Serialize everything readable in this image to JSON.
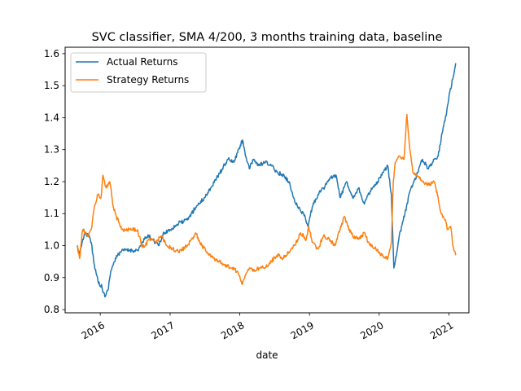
{
  "chart_data": {
    "type": "line",
    "title": "SVC classifier, SMA 4/200, 3 months training data, baseline",
    "xlabel": "date",
    "ylabel": "",
    "xlim": [
      "2015-07-01",
      "2021-04-15"
    ],
    "ylim": [
      0.79,
      1.62
    ],
    "x_ticks": [
      {
        "date": "2016-01-01",
        "label": "2016"
      },
      {
        "date": "2017-01-01",
        "label": "2017"
      },
      {
        "date": "2018-01-01",
        "label": "2018"
      },
      {
        "date": "2019-01-01",
        "label": "2019"
      },
      {
        "date": "2020-01-01",
        "label": "2020"
      },
      {
        "date": "2021-01-01",
        "label": "2021"
      }
    ],
    "y_ticks": [
      0.8,
      0.9,
      1.0,
      1.1,
      1.2,
      1.3,
      1.4,
      1.5,
      1.6
    ],
    "legend_position": "top-left",
    "series": [
      {
        "name": "Actual Returns",
        "color": "#1f77b4",
        "points": [
          [
            "2015-09-01",
            1.0
          ],
          [
            "2015-09-15",
            0.97
          ],
          [
            "2015-10-01",
            1.02
          ],
          [
            "2015-10-15",
            1.04
          ],
          [
            "2015-11-01",
            1.03
          ],
          [
            "2015-11-15",
            1.01
          ],
          [
            "2015-12-01",
            0.94
          ],
          [
            "2015-12-20",
            0.89
          ],
          [
            "2016-01-10",
            0.87
          ],
          [
            "2016-01-25",
            0.84
          ],
          [
            "2016-02-10",
            0.86
          ],
          [
            "2016-02-25",
            0.92
          ],
          [
            "2016-03-15",
            0.95
          ],
          [
            "2016-04-01",
            0.97
          ],
          [
            "2016-04-15",
            0.98
          ],
          [
            "2016-05-01",
            0.985
          ],
          [
            "2016-07-15",
            0.985
          ],
          [
            "2016-08-01",
            1.0
          ],
          [
            "2016-08-20",
            1.02
          ],
          [
            "2016-09-10",
            1.03
          ],
          [
            "2016-10-01",
            1.02
          ],
          [
            "2016-11-01",
            1.0
          ],
          [
            "2016-12-01",
            1.04
          ],
          [
            "2017-01-01",
            1.05
          ],
          [
            "2017-02-15",
            1.07
          ],
          [
            "2017-04-01",
            1.08
          ],
          [
            "2017-05-15",
            1.12
          ],
          [
            "2017-07-01",
            1.15
          ],
          [
            "2017-08-01",
            1.18
          ],
          [
            "2017-09-01",
            1.21
          ],
          [
            "2017-10-01",
            1.24
          ],
          [
            "2017-11-01",
            1.27
          ],
          [
            "2017-12-01",
            1.26
          ],
          [
            "2017-12-20",
            1.29
          ],
          [
            "2018-01-15",
            1.33
          ],
          [
            "2018-02-05",
            1.27
          ],
          [
            "2018-02-20",
            1.24
          ],
          [
            "2018-03-15",
            1.27
          ],
          [
            "2018-04-10",
            1.25
          ],
          [
            "2018-05-15",
            1.26
          ],
          [
            "2018-06-15",
            1.25
          ],
          [
            "2018-07-15",
            1.23
          ],
          [
            "2018-08-15",
            1.22
          ],
          [
            "2018-09-15",
            1.2
          ],
          [
            "2018-10-10",
            1.15
          ],
          [
            "2018-11-01",
            1.12
          ],
          [
            "2018-12-01",
            1.1
          ],
          [
            "2018-12-24",
            1.06
          ],
          [
            "2019-01-15",
            1.12
          ],
          [
            "2019-02-15",
            1.16
          ],
          [
            "2019-03-15",
            1.18
          ],
          [
            "2019-04-20",
            1.21
          ],
          [
            "2019-05-20",
            1.22
          ],
          [
            "2019-06-10",
            1.15
          ],
          [
            "2019-07-15",
            1.2
          ],
          [
            "2019-08-15",
            1.15
          ],
          [
            "2019-09-15",
            1.18
          ],
          [
            "2019-10-15",
            1.13
          ],
          [
            "2019-11-15",
            1.17
          ],
          [
            "2019-12-15",
            1.19
          ],
          [
            "2020-01-15",
            1.22
          ],
          [
            "2020-02-15",
            1.25
          ],
          [
            "2020-03-05",
            1.16
          ],
          [
            "2020-03-18",
            0.93
          ],
          [
            "2020-03-25",
            0.95
          ],
          [
            "2020-04-15",
            1.03
          ],
          [
            "2020-05-15",
            1.1
          ],
          [
            "2020-06-10",
            1.17
          ],
          [
            "2020-07-15",
            1.22
          ],
          [
            "2020-08-15",
            1.27
          ],
          [
            "2020-09-15",
            1.24
          ],
          [
            "2020-10-15",
            1.27
          ],
          [
            "2020-11-05",
            1.28
          ],
          [
            "2020-11-25",
            1.35
          ],
          [
            "2020-12-20",
            1.42
          ],
          [
            "2021-01-05",
            1.48
          ],
          [
            "2021-01-20",
            1.52
          ],
          [
            "2021-02-05",
            1.57
          ]
        ]
      },
      {
        "name": "Strategy Returns",
        "color": "#ff7f0e",
        "points": [
          [
            "2015-09-01",
            1.0
          ],
          [
            "2015-09-15",
            0.96
          ],
          [
            "2015-10-01",
            1.05
          ],
          [
            "2015-10-15",
            1.04
          ],
          [
            "2015-11-01",
            1.03
          ],
          [
            "2015-11-15",
            1.05
          ],
          [
            "2015-12-01",
            1.12
          ],
          [
            "2015-12-20",
            1.16
          ],
          [
            "2016-01-05",
            1.15
          ],
          [
            "2016-01-15",
            1.22
          ],
          [
            "2016-02-01",
            1.18
          ],
          [
            "2016-02-20",
            1.2
          ],
          [
            "2016-03-10",
            1.12
          ],
          [
            "2016-03-25",
            1.09
          ],
          [
            "2016-04-10",
            1.07
          ],
          [
            "2016-04-25",
            1.05
          ],
          [
            "2016-07-15",
            1.05
          ],
          [
            "2016-08-05",
            1.0
          ],
          [
            "2016-08-25",
            1.0
          ],
          [
            "2016-09-15",
            1.02
          ],
          [
            "2016-10-15",
            1.01
          ],
          [
            "2016-11-15",
            1.03
          ],
          [
            "2016-12-15",
            1.0
          ],
          [
            "2017-01-15",
            0.99
          ],
          [
            "2017-02-15",
            0.98
          ],
          [
            "2017-04-01",
            1.0
          ],
          [
            "2017-05-15",
            1.04
          ],
          [
            "2017-06-15",
            1.0
          ],
          [
            "2017-07-15",
            0.98
          ],
          [
            "2017-08-15",
            0.96
          ],
          [
            "2017-09-15",
            0.95
          ],
          [
            "2017-10-15",
            0.94
          ],
          [
            "2017-11-15",
            0.93
          ],
          [
            "2017-12-20",
            0.92
          ],
          [
            "2018-01-15",
            0.88
          ],
          [
            "2018-02-01",
            0.91
          ],
          [
            "2018-02-20",
            0.93
          ],
          [
            "2018-03-15",
            0.92
          ],
          [
            "2018-04-15",
            0.93
          ],
          [
            "2018-05-15",
            0.93
          ],
          [
            "2018-06-15",
            0.95
          ],
          [
            "2018-07-15",
            0.97
          ],
          [
            "2018-08-15",
            0.96
          ],
          [
            "2018-09-15",
            0.98
          ],
          [
            "2018-10-15",
            1.0
          ],
          [
            "2018-11-15",
            1.04
          ],
          [
            "2018-12-15",
            1.02
          ],
          [
            "2018-12-28",
            1.06
          ],
          [
            "2019-01-15",
            1.01
          ],
          [
            "2019-02-15",
            0.99
          ],
          [
            "2019-03-15",
            1.03
          ],
          [
            "2019-04-15",
            1.02
          ],
          [
            "2019-05-15",
            1.0
          ],
          [
            "2019-06-10",
            1.05
          ],
          [
            "2019-07-01",
            1.09
          ],
          [
            "2019-07-20",
            1.06
          ],
          [
            "2019-08-15",
            1.03
          ],
          [
            "2019-09-15",
            1.02
          ],
          [
            "2019-10-15",
            1.04
          ],
          [
            "2019-11-15",
            1.0
          ],
          [
            "2019-12-15",
            0.99
          ],
          [
            "2020-01-15",
            0.97
          ],
          [
            "2020-02-15",
            0.96
          ],
          [
            "2020-03-05",
            1.01
          ],
          [
            "2020-03-15",
            1.2
          ],
          [
            "2020-03-25",
            1.26
          ],
          [
            "2020-04-15",
            1.28
          ],
          [
            "2020-05-10",
            1.27
          ],
          [
            "2020-05-25",
            1.41
          ],
          [
            "2020-06-10",
            1.3
          ],
          [
            "2020-06-25",
            1.23
          ],
          [
            "2020-07-15",
            1.22
          ],
          [
            "2020-08-15",
            1.2
          ],
          [
            "2020-09-15",
            1.19
          ],
          [
            "2020-10-15",
            1.2
          ],
          [
            "2020-11-05",
            1.15
          ],
          [
            "2020-11-20",
            1.1
          ],
          [
            "2020-12-10",
            1.08
          ],
          [
            "2020-12-25",
            1.05
          ],
          [
            "2021-01-10",
            1.06
          ],
          [
            "2021-01-20",
            1.0
          ],
          [
            "2021-02-05",
            0.97
          ]
        ]
      }
    ]
  }
}
